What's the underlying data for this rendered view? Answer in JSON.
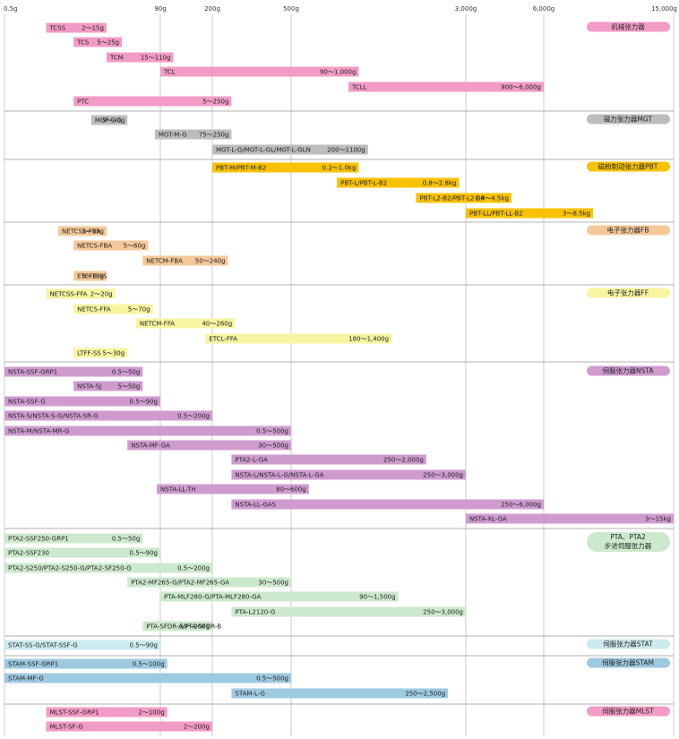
{
  "chart_data": {
    "type": "bar",
    "orientation": "horizontal-range",
    "x_scale": "log-like (piecewise by tick)",
    "x_ticks": [
      {
        "value": 0.5,
        "label": "0.5g"
      },
      {
        "value": 90,
        "label": "90g"
      },
      {
        "value": 200,
        "label": "200g"
      },
      {
        "value": 500,
        "label": "500g"
      },
      {
        "value": 3000,
        "label": "3,000g"
      },
      {
        "value": 6000,
        "label": "6,000g"
      },
      {
        "value": 15000,
        "label": "15,000g"
      }
    ],
    "grid": true,
    "colors": {
      "pink": "#f29bc6",
      "gray": "#bdbdbd",
      "yellow": "#f8c200",
      "orange": "#f5c89a",
      "lightyellow": "#f7f5a0",
      "purple": "#cf9bcf",
      "green": "#cde9cd",
      "lightblue": "#cdebef",
      "blue": "#9ecae0",
      "grid": "#bfbfbf",
      "divider": "#999999"
    },
    "groups": [
      {
        "label": "机械张力器",
        "color": "pink",
        "bars": [
          {
            "name": "TCSS",
            "range": "2～15g",
            "min": 2,
            "max": 15
          },
          {
            "name": "TCS",
            "range": "5～25g",
            "min": 5,
            "max": 25
          },
          {
            "name": "TCM",
            "range": "15～110g",
            "min": 15,
            "max": 110
          },
          {
            "name": "TCL",
            "range": "90～1,000g",
            "min": 90,
            "max": 1000
          },
          {
            "name": "TCLL",
            "range": "900～6,000g",
            "min": 900,
            "max": 6000
          },
          {
            "name": "PTC",
            "range": "5～250g",
            "min": 5,
            "max": 250
          }
        ]
      },
      {
        "label": "磁力张力器MGT",
        "color": "gray",
        "bars": [
          {
            "name": "MGT-S-G",
            "range": "9～30g",
            "min": 9,
            "max": 30,
            "small": true
          },
          {
            "name": "MGT-M-G",
            "range": "75～250g",
            "min": 75,
            "max": 250
          },
          {
            "name": "MGT-L-G/MGT-L-GL/MGT-L-GLN",
            "range": "200～1100g",
            "min": 200,
            "max": 1100
          }
        ]
      },
      {
        "label": "磁粉制动张力器PBT",
        "color": "yellow",
        "bars": [
          {
            "name": "PBT-M/PBT-M-B2",
            "range": "0.2～1.0kg",
            "min": 200,
            "max": 1000
          },
          {
            "name": "PBT-L/PBT-L-B2",
            "range": "0.8～2.8kg",
            "min": 800,
            "max": 2800
          },
          {
            "name": "PBT-L2-B2/PBT-L2-B4",
            "range": "1.8～4.5kg",
            "min": 1800,
            "max": 4500,
            "small": true
          },
          {
            "name": "PBT-LL/PBT-LL-B2",
            "range": "3～8.5kg",
            "min": 3000,
            "max": 8500
          }
        ]
      },
      {
        "label": "电子张力器FB",
        "color": "orange",
        "bars": [
          {
            "name": "NETCSS-FBA",
            "range": "3～15g",
            "min": 3,
            "max": 15,
            "small": true
          },
          {
            "name": "NETCS-FBA",
            "range": "5～60g",
            "min": 5,
            "max": 60
          },
          {
            "name": "NETCM-FBA",
            "range": "50～240g",
            "min": 50,
            "max": 240
          },
          {
            "name": "ETCFB-SS",
            "range": "5～15g",
            "min": 5,
            "max": 15,
            "small": true
          }
        ]
      },
      {
        "label": "电子张力器FF",
        "color": "lightyellow",
        "bars": [
          {
            "name": "NETCSS-FFA",
            "range": "2～20g",
            "min": 2,
            "max": 20
          },
          {
            "name": "NETCS-FFA",
            "range": "5～70g",
            "min": 5,
            "max": 70
          },
          {
            "name": "NETCM-FFA",
            "range": "40～260g",
            "min": 40,
            "max": 260
          },
          {
            "name": "ETCL-FFA",
            "range": "180～1,400g",
            "min": 180,
            "max": 1400
          },
          {
            "name": "LTFF-SS",
            "range": "5～30g",
            "min": 5,
            "max": 30
          }
        ]
      },
      {
        "label": "伺服张力器NSTA",
        "color": "purple",
        "bars": [
          {
            "name": "NSTA-SSF-GRP1",
            "range": "0.5～50g",
            "min": 0.5,
            "max": 50
          },
          {
            "name": "NSTA-SJ",
            "range": "5～50g",
            "min": 5,
            "max": 50
          },
          {
            "name": "NSTA-SSF-G",
            "range": "0.5～90g",
            "min": 0.5,
            "max": 90
          },
          {
            "name": "NSTA-S/NSTA-S-G/NSTA-SR-G",
            "range": "0.5～200g",
            "min": 0.5,
            "max": 200
          },
          {
            "name": "NSTA-M/NSTA-MR-G",
            "range": "0.5～500g",
            "min": 0.5,
            "max": 500
          },
          {
            "name": "NSTA-MF-GA",
            "range": "30～500g",
            "min": 30,
            "max": 500
          },
          {
            "name": "PTA2-L-GA",
            "range": "250～2,000g",
            "min": 250,
            "max": 2000
          },
          {
            "name": "NSTA-L/NSTA-L-G/NSTA-L-GA",
            "range": "250～3,000g",
            "min": 250,
            "max": 3000
          },
          {
            "name": "NSTA-LL-TH",
            "range": "80～600g",
            "min": 80,
            "max": 600
          },
          {
            "name": "NSTA-LL-GAS",
            "range": "250～6,000g",
            "min": 250,
            "max": 6000
          },
          {
            "name": "NSTA-XL-GA",
            "range": "3～15kg",
            "min": 3000,
            "max": 15000
          }
        ]
      },
      {
        "label": "PTA、PTA2\n步进伺服张力器",
        "color": "green",
        "bars": [
          {
            "name": "PTA2-SSF250-GRP1",
            "range": "0.5～50g",
            "min": 0.5,
            "max": 50
          },
          {
            "name": "PTA2-SSF230",
            "range": "0.5～90g",
            "min": 0.5,
            "max": 90
          },
          {
            "name": "PTA2-S250/PTA2-S250-G/PTA2-SF250-G",
            "range": "0.5～200g",
            "min": 0.5,
            "max": 200
          },
          {
            "name": "PTA2-MF265-G/PTA2-MF265-GA",
            "range": "30～500g",
            "min": 30,
            "max": 500
          },
          {
            "name": "PTA-MLF280-G/PTA-MLF280-GA",
            "range": "90～1,500g",
            "min": 90,
            "max": 1500
          },
          {
            "name": "PTA-L2120-G",
            "range": "250～3,000g",
            "min": 250,
            "max": 3000
          },
          {
            "name": "PTA-SFDR-A/PTA-SFDR-B",
            "range": "50～200g",
            "min": 50,
            "max": 200,
            "small": true
          }
        ]
      },
      {
        "label": "伺服张力器STAT",
        "color": "lightblue",
        "bars": [
          {
            "name": "STAT-SS-G/STAT-SSF-G",
            "range": "0.5～90g",
            "min": 0.5,
            "max": 90
          }
        ]
      },
      {
        "label": "伺服张力器STAM",
        "color": "blue",
        "bars": [
          {
            "name": "STAM-SSF-GRP1",
            "range": "0.5～100g",
            "min": 0.5,
            "max": 100
          },
          {
            "name": "STAM-MF-G",
            "range": "0.5～500g",
            "min": 0.5,
            "max": 500
          },
          {
            "name": "STAM-L-G",
            "range": "250～2,500g",
            "min": 250,
            "max": 2500
          }
        ]
      },
      {
        "label": "伺服张力器MLST",
        "color": "pink",
        "bars": [
          {
            "name": "MLST-SSF-GRP1",
            "range": "2～100g",
            "min": 2,
            "max": 100
          },
          {
            "name": "MLST-SF-G",
            "range": "2～200g",
            "min": 2,
            "max": 200
          }
        ]
      }
    ]
  }
}
